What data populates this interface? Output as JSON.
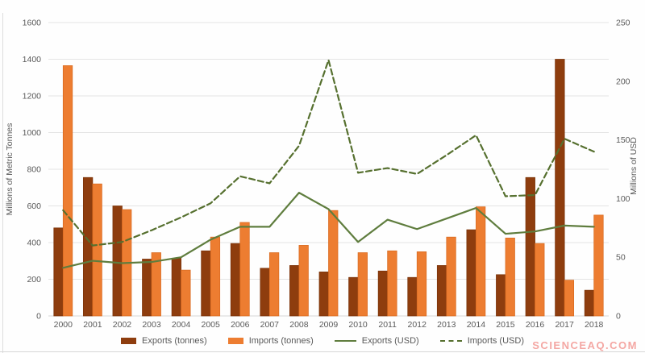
{
  "watermark": {
    "text": "SCIENCEAQ.COM",
    "color": "#f4a7a3"
  },
  "style": {
    "background": "#fefefe",
    "grid_color": "#e4e4e4",
    "axis_line_color": "#d6d6d6",
    "text_color": "#595959",
    "frame_color": "#dcdcdc"
  },
  "chart_data": {
    "type": "bar",
    "subtype": "combo-bar-line-dual-axis",
    "title": "",
    "xlabel": "",
    "ylabel_left": "Millions of Metric Tonnes",
    "ylabel_right": "Millions of USD",
    "ylim_left": [
      0,
      1600
    ],
    "ytick_step_left": 200,
    "yticks_left": [
      "0",
      "200",
      "400",
      "600",
      "800",
      "1000",
      "1200",
      "1400",
      "1600"
    ],
    "ylim_right": [
      0,
      250
    ],
    "ytick_step_right": 50,
    "yticks_right": [
      "0",
      "50",
      "100",
      "150",
      "200",
      "250"
    ],
    "grid": true,
    "legend_position": "bottom",
    "categories": [
      "2000",
      "2001",
      "2002",
      "2003",
      "2004",
      "2005",
      "2006",
      "2007",
      "2008",
      "2009",
      "2010",
      "2011",
      "2012",
      "2013",
      "2014",
      "2015",
      "2016",
      "2017",
      "2018"
    ],
    "series": [
      {
        "name": "Exports (tonnes)",
        "type": "bar",
        "axis": "left",
        "color": "#8e3d0e",
        "border_color": "#7b3309",
        "values": [
          480,
          755,
          600,
          310,
          315,
          355,
          395,
          260,
          275,
          240,
          210,
          245,
          210,
          275,
          470,
          225,
          755,
          1400,
          140
        ]
      },
      {
        "name": "Imports (tonnes)",
        "type": "bar",
        "axis": "left",
        "color": "#ed7d31",
        "border_color": "#d96b21",
        "values": [
          1365,
          720,
          580,
          345,
          250,
          430,
          510,
          345,
          385,
          575,
          345,
          355,
          350,
          430,
          595,
          425,
          395,
          195,
          550
        ]
      },
      {
        "name": "Exports (USD)",
        "type": "line",
        "axis": "right",
        "color": "#5f7d3e",
        "dashed": false,
        "values": [
          41,
          47,
          45,
          46,
          50,
          65,
          76,
          76,
          105,
          91,
          63,
          82,
          74,
          83,
          92,
          70,
          72,
          77,
          76
        ]
      },
      {
        "name": "Imports (USD)",
        "type": "line",
        "axis": "right",
        "color": "#56702f",
        "dashed": true,
        "values": [
          90,
          60,
          63,
          73,
          84,
          96,
          119,
          113,
          145,
          218,
          122,
          126,
          121,
          137,
          154,
          102,
          103,
          151,
          140
        ]
      }
    ]
  }
}
